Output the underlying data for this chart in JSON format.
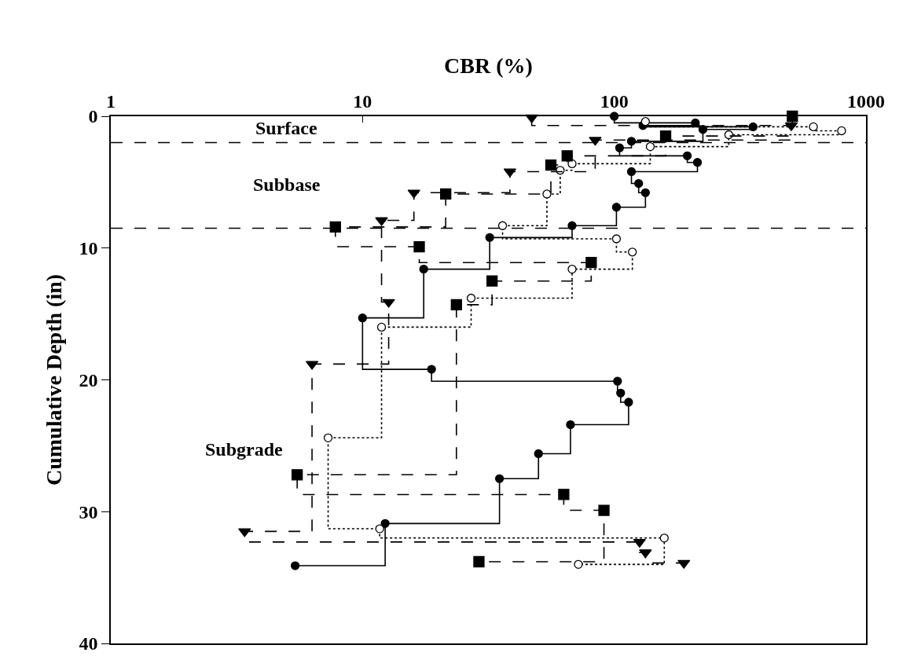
{
  "chart_data": {
    "type": "step",
    "xlabel": "CBR (%)",
    "ylabel": "Cumulative Depth (in)",
    "log": "x",
    "xlim": [
      1,
      1000
    ],
    "xticks": [
      1,
      10,
      100,
      1000
    ],
    "ylim": [
      40,
      0
    ],
    "yticks": [
      0,
      10,
      20,
      30,
      40
    ],
    "grid": false,
    "series": [
      {
        "color": "#000000",
        "marker": "circle",
        "line_style": "solid",
        "x": [
          100,
          210,
          130,
          356,
          225,
          117,
          105,
          195,
          214,
          117,
          125,
          133,
          102,
          68,
          32,
          17.5,
          10,
          18.8,
          103,
          106,
          114,
          67,
          50,
          35,
          12.3,
          5.4
        ],
        "values": [
          0,
          0.5,
          0.7,
          0.8,
          1.0,
          1.9,
          2.4,
          3.0,
          3.5,
          4.2,
          5.1,
          5.8,
          6.9,
          8.3,
          9.2,
          11.6,
          15.3,
          19.2,
          20.1,
          21.0,
          21.7,
          23.4,
          25.6,
          27.5,
          30.9,
          34.1
        ]
      },
      {
        "color": "#ffffff",
        "marker": "circle",
        "line_style": "dotted",
        "x": [
          133,
          618,
          800,
          285,
          139,
          68,
          61,
          54,
          36,
          102,
          118,
          68,
          27,
          11.9,
          7.3,
          11.7,
          158,
          72
        ],
        "values": [
          0.4,
          0.8,
          1.1,
          1.4,
          2.3,
          3.6,
          4.1,
          5.9,
          8.3,
          9.3,
          10.3,
          11.6,
          13.8,
          16.0,
          24.4,
          31.3,
          32.0,
          34.0
        ]
      },
      {
        "color": "#000000",
        "marker": "square",
        "line_style": "dashed",
        "x": [
          510,
          160,
          65,
          56,
          21.4,
          7.8,
          16.8,
          81,
          32.7,
          23.6,
          5.5,
          63,
          91,
          29
        ],
        "values": [
          0,
          1.5,
          3.0,
          3.7,
          5.9,
          8.4,
          9.9,
          11.1,
          12.5,
          14.3,
          27.2,
          28.7,
          29.9,
          33.8
        ]
      },
      {
        "color": "#000000",
        "marker": "triangle",
        "line_style": "dashed",
        "x": [
          47,
          505,
          84,
          38.5,
          16,
          11.9,
          12.7,
          6.3,
          3.4,
          126,
          133,
          189
        ],
        "values": [
          0.1,
          0.7,
          1.8,
          4.2,
          5.8,
          7.9,
          14.1,
          18.8,
          31.5,
          32.3,
          33.1,
          33.9
        ]
      }
    ],
    "ref_lines": [
      {
        "axis": "y",
        "value": 2,
        "line_style": "dashed"
      },
      {
        "axis": "y",
        "value": 8.5,
        "line_style": "dashed"
      }
    ],
    "annotations": [
      "Surface",
      "Subbase",
      "Subgrade"
    ]
  }
}
